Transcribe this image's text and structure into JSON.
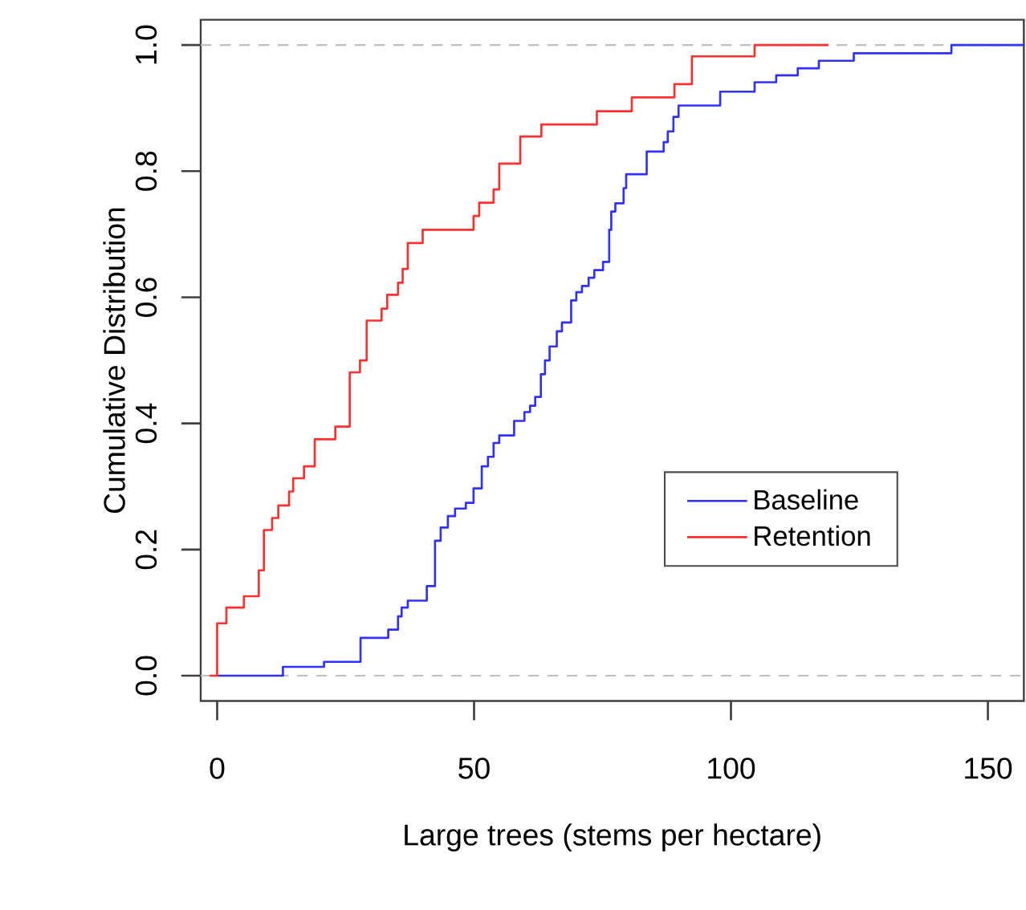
{
  "chart_data": {
    "type": "step",
    "xlabel": "Large trees (stems per hectare)",
    "ylabel": "Cumulative Distribution",
    "xlim": [
      -3.2,
      157
    ],
    "ylim": [
      -0.04,
      1.04
    ],
    "xticks": [
      0,
      50,
      100,
      150
    ],
    "yticks": [
      {
        "value": 0,
        "label": "0.0"
      },
      {
        "value": 0.2,
        "label": "0.2"
      },
      {
        "value": 0.4,
        "label": "0.4"
      },
      {
        "value": 0.6,
        "label": "0.6"
      },
      {
        "value": 0.8,
        "label": "0.8"
      },
      {
        "value": 1,
        "label": "1.0"
      }
    ],
    "legend": "right",
    "line_style": "solid",
    "marker": "none",
    "ref_lines": [
      {
        "axis": "y",
        "value": 0,
        "color": "#c0c0c0",
        "line_style": "dashed"
      },
      {
        "axis": "y",
        "value": 1,
        "color": "#c0c0c0",
        "line_style": "dashed"
      }
    ],
    "series": [
      {
        "name": "Baseline",
        "color": "#3030ff",
        "x": [
          0,
          12.8,
          20.8,
          27.9,
          33.3,
          35.2,
          35.9,
          37.1,
          40.8,
          42.4,
          43.5,
          44.9,
          46.3,
          48.4,
          49.9,
          51.5,
          52.7,
          53.8,
          54.9,
          57.8,
          59.8,
          60.9,
          61.9,
          63,
          63.8,
          64.7,
          66.1,
          67.1,
          68.9,
          69.9,
          71,
          72.3,
          73.4,
          75.1,
          76.3,
          76.7,
          77.5,
          79.1,
          79.6,
          83.6,
          86.9,
          87.7,
          88.8,
          89.8,
          97.9,
          104.6,
          108.8,
          113,
          117.1,
          123.9,
          142.9,
          157
        ],
        "values": [
          0,
          0.014,
          0.022,
          0.06,
          0.073,
          0.094,
          0.108,
          0.119,
          0.142,
          0.214,
          0.235,
          0.253,
          0.265,
          0.274,
          0.297,
          0.332,
          0.347,
          0.369,
          0.381,
          0.404,
          0.418,
          0.428,
          0.442,
          0.478,
          0.5,
          0.522,
          0.546,
          0.56,
          0.595,
          0.608,
          0.618,
          0.631,
          0.643,
          0.656,
          0.707,
          0.736,
          0.749,
          0.773,
          0.795,
          0.831,
          0.846,
          0.863,
          0.886,
          0.904,
          0.926,
          0.941,
          0.952,
          0.963,
          0.975,
          0.987,
          1,
          1
        ]
      },
      {
        "name": "Retention",
        "color": "#ff3030",
        "x": [
          -1.5,
          0,
          1.8,
          5.2,
          8.1,
          9.1,
          10.7,
          11.9,
          14,
          14.8,
          16.9,
          19,
          23,
          25.8,
          27.8,
          29.1,
          32,
          33.1,
          35.2,
          36.1,
          37.1,
          40,
          49.9,
          51,
          53.8,
          54.9,
          59,
          63.1,
          73.9,
          80.7,
          89,
          92.4,
          104.6,
          119
        ],
        "values": [
          0,
          0.083,
          0.108,
          0.126,
          0.167,
          0.231,
          0.25,
          0.27,
          0.292,
          0.313,
          0.332,
          0.375,
          0.395,
          0.481,
          0.5,
          0.563,
          0.582,
          0.604,
          0.623,
          0.645,
          0.686,
          0.707,
          0.729,
          0.75,
          0.771,
          0.812,
          0.855,
          0.874,
          0.895,
          0.917,
          0.938,
          0.982,
          1,
          1
        ]
      }
    ]
  }
}
